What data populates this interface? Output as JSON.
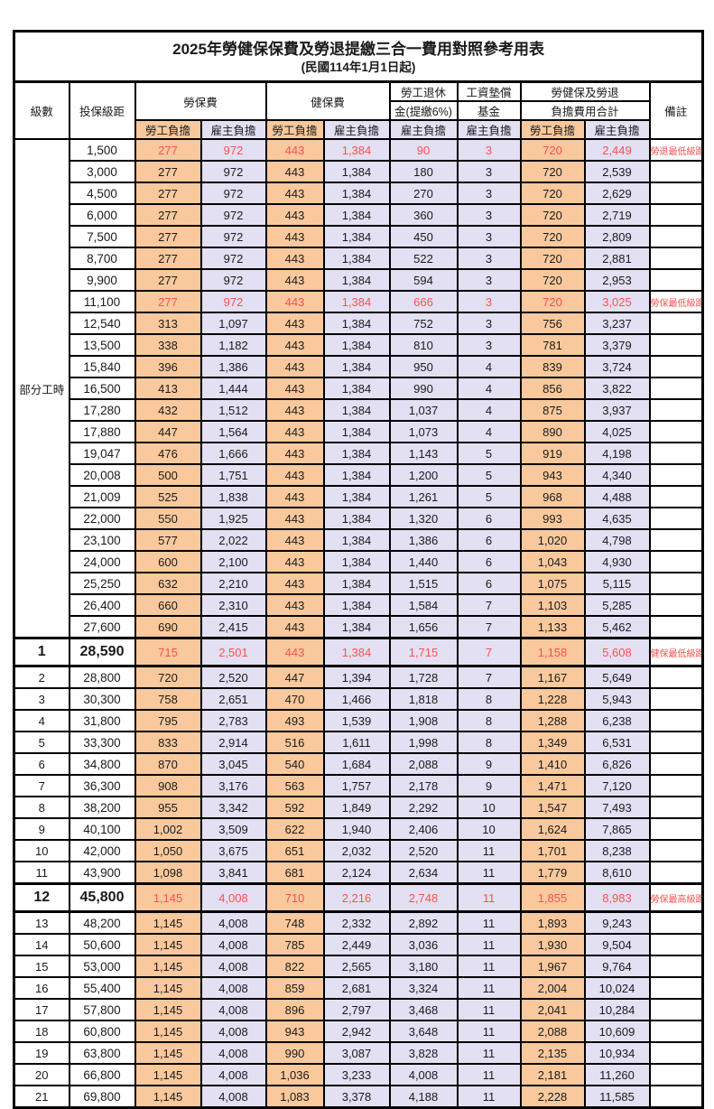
{
  "title": "2025年勞健保保費及勞退提繳三合一費用對照參考用表",
  "subtitle": "(民國114年1月1日起)",
  "header": {
    "level": "級數",
    "bracket": "投保級距",
    "labor_insurance": "勞保費",
    "health_insurance": "健保費",
    "pension_line1": "勞工退休",
    "pension_line2": "金(提繳6%)",
    "wage_fund_line1": "工資墊償",
    "wage_fund_line2": "基金",
    "total_line1": "勞健保及勞退",
    "total_line2": "負擔費用合計",
    "worker": "勞工負擔",
    "employer": "雇主負擔",
    "remarks": "備註"
  },
  "part_time_label": "部分工時",
  "part_time_rowspan": 23,
  "colors": {
    "worker_bg": "#F9C99D",
    "employer_bg": "#E2E0F2",
    "highlight_red": "#FF5050",
    "border": "#000000"
  },
  "rows": [
    {
      "level": "",
      "bracket": "1,500",
      "values": [
        "277",
        "972",
        "443",
        "1,384",
        "90",
        "3",
        "720",
        "2,449"
      ],
      "note": "勞退最低級距",
      "red": true,
      "tall": false,
      "heavy": false,
      "big": false
    },
    {
      "level": "",
      "bracket": "3,000",
      "values": [
        "277",
        "972",
        "443",
        "1,384",
        "180",
        "3",
        "720",
        "2,539"
      ],
      "note": "",
      "red": false,
      "tall": false,
      "heavy": false,
      "big": false
    },
    {
      "level": "",
      "bracket": "4,500",
      "values": [
        "277",
        "972",
        "443",
        "1,384",
        "270",
        "3",
        "720",
        "2,629"
      ],
      "note": "",
      "red": false,
      "tall": false,
      "heavy": false,
      "big": false
    },
    {
      "level": "",
      "bracket": "6,000",
      "values": [
        "277",
        "972",
        "443",
        "1,384",
        "360",
        "3",
        "720",
        "2,719"
      ],
      "note": "",
      "red": false,
      "tall": false,
      "heavy": false,
      "big": false
    },
    {
      "level": "",
      "bracket": "7,500",
      "values": [
        "277",
        "972",
        "443",
        "1,384",
        "450",
        "3",
        "720",
        "2,809"
      ],
      "note": "",
      "red": false,
      "tall": false,
      "heavy": false,
      "big": false
    },
    {
      "level": "",
      "bracket": "8,700",
      "values": [
        "277",
        "972",
        "443",
        "1,384",
        "522",
        "3",
        "720",
        "2,881"
      ],
      "note": "",
      "red": false,
      "tall": false,
      "heavy": false,
      "big": false
    },
    {
      "level": "",
      "bracket": "9,900",
      "values": [
        "277",
        "972",
        "443",
        "1,384",
        "594",
        "3",
        "720",
        "2,953"
      ],
      "note": "",
      "red": false,
      "tall": false,
      "heavy": false,
      "big": false
    },
    {
      "level": "",
      "bracket": "11,100",
      "values": [
        "277",
        "972",
        "443",
        "1,384",
        "666",
        "3",
        "720",
        "3,025"
      ],
      "note": "勞保最低級距",
      "red": true,
      "tall": false,
      "heavy": false,
      "big": false
    },
    {
      "level": "",
      "bracket": "12,540",
      "values": [
        "313",
        "1,097",
        "443",
        "1,384",
        "752",
        "3",
        "756",
        "3,237"
      ],
      "note": "",
      "red": false,
      "tall": false,
      "heavy": false,
      "big": false
    },
    {
      "level": "",
      "bracket": "13,500",
      "values": [
        "338",
        "1,182",
        "443",
        "1,384",
        "810",
        "3",
        "781",
        "3,379"
      ],
      "note": "",
      "red": false,
      "tall": false,
      "heavy": false,
      "big": false
    },
    {
      "level": "",
      "bracket": "15,840",
      "values": [
        "396",
        "1,386",
        "443",
        "1,384",
        "950",
        "4",
        "839",
        "3,724"
      ],
      "note": "",
      "red": false,
      "tall": false,
      "heavy": false,
      "big": false
    },
    {
      "level": "",
      "bracket": "16,500",
      "values": [
        "413",
        "1,444",
        "443",
        "1,384",
        "990",
        "4",
        "856",
        "3,822"
      ],
      "note": "",
      "red": false,
      "tall": false,
      "heavy": false,
      "big": false
    },
    {
      "level": "",
      "bracket": "17,280",
      "values": [
        "432",
        "1,512",
        "443",
        "1,384",
        "1,037",
        "4",
        "875",
        "3,937"
      ],
      "note": "",
      "red": false,
      "tall": false,
      "heavy": false,
      "big": false
    },
    {
      "level": "",
      "bracket": "17,880",
      "values": [
        "447",
        "1,564",
        "443",
        "1,384",
        "1,073",
        "4",
        "890",
        "4,025"
      ],
      "note": "",
      "red": false,
      "tall": false,
      "heavy": false,
      "big": false
    },
    {
      "level": "",
      "bracket": "19,047",
      "values": [
        "476",
        "1,666",
        "443",
        "1,384",
        "1,143",
        "5",
        "919",
        "4,198"
      ],
      "note": "",
      "red": false,
      "tall": false,
      "heavy": false,
      "big": false
    },
    {
      "level": "",
      "bracket": "20,008",
      "values": [
        "500",
        "1,751",
        "443",
        "1,384",
        "1,200",
        "5",
        "943",
        "4,340"
      ],
      "note": "",
      "red": false,
      "tall": false,
      "heavy": false,
      "big": false
    },
    {
      "level": "",
      "bracket": "21,009",
      "values": [
        "525",
        "1,838",
        "443",
        "1,384",
        "1,261",
        "5",
        "968",
        "4,488"
      ],
      "note": "",
      "red": false,
      "tall": false,
      "heavy": false,
      "big": false
    },
    {
      "level": "",
      "bracket": "22,000",
      "values": [
        "550",
        "1,925",
        "443",
        "1,384",
        "1,320",
        "6",
        "993",
        "4,635"
      ],
      "note": "",
      "red": false,
      "tall": false,
      "heavy": false,
      "big": false
    },
    {
      "level": "",
      "bracket": "23,100",
      "values": [
        "577",
        "2,022",
        "443",
        "1,384",
        "1,386",
        "6",
        "1,020",
        "4,798"
      ],
      "note": "",
      "red": false,
      "tall": false,
      "heavy": false,
      "big": false
    },
    {
      "level": "",
      "bracket": "24,000",
      "values": [
        "600",
        "2,100",
        "443",
        "1,384",
        "1,440",
        "6",
        "1,043",
        "4,930"
      ],
      "note": "",
      "red": false,
      "tall": false,
      "heavy": false,
      "big": false
    },
    {
      "level": "",
      "bracket": "25,250",
      "values": [
        "632",
        "2,210",
        "443",
        "1,384",
        "1,515",
        "6",
        "1,075",
        "5,115"
      ],
      "note": "",
      "red": false,
      "tall": false,
      "heavy": false,
      "big": false
    },
    {
      "level": "",
      "bracket": "26,400",
      "values": [
        "660",
        "2,310",
        "443",
        "1,384",
        "1,584",
        "7",
        "1,103",
        "5,285"
      ],
      "note": "",
      "red": false,
      "tall": false,
      "heavy": false,
      "big": false
    },
    {
      "level": "",
      "bracket": "27,600",
      "values": [
        "690",
        "2,415",
        "443",
        "1,384",
        "1,656",
        "7",
        "1,133",
        "5,462"
      ],
      "note": "",
      "red": false,
      "tall": false,
      "heavy": false,
      "big": false
    },
    {
      "level": "1",
      "bracket": "28,590",
      "values": [
        "715",
        "2,501",
        "443",
        "1,384",
        "1,715",
        "7",
        "1,158",
        "5,608"
      ],
      "note": "健保最低級距",
      "red": true,
      "tall": true,
      "heavy": true,
      "big": true
    },
    {
      "level": "2",
      "bracket": "28,800",
      "values": [
        "720",
        "2,520",
        "447",
        "1,394",
        "1,728",
        "7",
        "1,167",
        "5,649"
      ],
      "note": "",
      "red": false,
      "tall": false,
      "heavy": false,
      "big": false
    },
    {
      "level": "3",
      "bracket": "30,300",
      "values": [
        "758",
        "2,651",
        "470",
        "1,466",
        "1,818",
        "8",
        "1,228",
        "5,943"
      ],
      "note": "",
      "red": false,
      "tall": false,
      "heavy": false,
      "big": false
    },
    {
      "level": "4",
      "bracket": "31,800",
      "values": [
        "795",
        "2,783",
        "493",
        "1,539",
        "1,908",
        "8",
        "1,288",
        "6,238"
      ],
      "note": "",
      "red": false,
      "tall": false,
      "heavy": false,
      "big": false
    },
    {
      "level": "5",
      "bracket": "33,300",
      "values": [
        "833",
        "2,914",
        "516",
        "1,611",
        "1,998",
        "8",
        "1,349",
        "6,531"
      ],
      "note": "",
      "red": false,
      "tall": false,
      "heavy": false,
      "big": false
    },
    {
      "level": "6",
      "bracket": "34,800",
      "values": [
        "870",
        "3,045",
        "540",
        "1,684",
        "2,088",
        "9",
        "1,410",
        "6,826"
      ],
      "note": "",
      "red": false,
      "tall": false,
      "heavy": false,
      "big": false
    },
    {
      "level": "7",
      "bracket": "36,300",
      "values": [
        "908",
        "3,176",
        "563",
        "1,757",
        "2,178",
        "9",
        "1,471",
        "7,120"
      ],
      "note": "",
      "red": false,
      "tall": false,
      "heavy": false,
      "big": false
    },
    {
      "level": "8",
      "bracket": "38,200",
      "values": [
        "955",
        "3,342",
        "592",
        "1,849",
        "2,292",
        "10",
        "1,547",
        "7,493"
      ],
      "note": "",
      "red": false,
      "tall": false,
      "heavy": false,
      "big": false
    },
    {
      "level": "9",
      "bracket": "40,100",
      "values": [
        "1,002",
        "3,509",
        "622",
        "1,940",
        "2,406",
        "10",
        "1,624",
        "7,865"
      ],
      "note": "",
      "red": false,
      "tall": false,
      "heavy": false,
      "big": false
    },
    {
      "level": "10",
      "bracket": "42,000",
      "values": [
        "1,050",
        "3,675",
        "651",
        "2,032",
        "2,520",
        "11",
        "1,701",
        "8,238"
      ],
      "note": "",
      "red": false,
      "tall": false,
      "heavy": false,
      "big": false
    },
    {
      "level": "11",
      "bracket": "43,900",
      "values": [
        "1,098",
        "3,841",
        "681",
        "2,124",
        "2,634",
        "11",
        "1,779",
        "8,610"
      ],
      "note": "",
      "red": false,
      "tall": false,
      "heavy": false,
      "big": false
    },
    {
      "level": "12",
      "bracket": "45,800",
      "values": [
        "1,145",
        "4,008",
        "710",
        "2,216",
        "2,748",
        "11",
        "1,855",
        "8,983"
      ],
      "note": "勞保最高級距",
      "red": true,
      "tall": true,
      "heavy": true,
      "big": true
    },
    {
      "level": "13",
      "bracket": "48,200",
      "values": [
        "1,145",
        "4,008",
        "748",
        "2,332",
        "2,892",
        "11",
        "1,893",
        "9,243"
      ],
      "note": "",
      "red": false,
      "tall": false,
      "heavy": false,
      "big": false
    },
    {
      "level": "14",
      "bracket": "50,600",
      "values": [
        "1,145",
        "4,008",
        "785",
        "2,449",
        "3,036",
        "11",
        "1,930",
        "9,504"
      ],
      "note": "",
      "red": false,
      "tall": false,
      "heavy": false,
      "big": false
    },
    {
      "level": "15",
      "bracket": "53,000",
      "values": [
        "1,145",
        "4,008",
        "822",
        "2,565",
        "3,180",
        "11",
        "1,967",
        "9,764"
      ],
      "note": "",
      "red": false,
      "tall": false,
      "heavy": false,
      "big": false
    },
    {
      "level": "16",
      "bracket": "55,400",
      "values": [
        "1,145",
        "4,008",
        "859",
        "2,681",
        "3,324",
        "11",
        "2,004",
        "10,024"
      ],
      "note": "",
      "red": false,
      "tall": false,
      "heavy": false,
      "big": false
    },
    {
      "level": "17",
      "bracket": "57,800",
      "values": [
        "1,145",
        "4,008",
        "896",
        "2,797",
        "3,468",
        "11",
        "2,041",
        "10,284"
      ],
      "note": "",
      "red": false,
      "tall": false,
      "heavy": false,
      "big": false
    },
    {
      "level": "18",
      "bracket": "60,800",
      "values": [
        "1,145",
        "4,008",
        "943",
        "2,942",
        "3,648",
        "11",
        "2,088",
        "10,609"
      ],
      "note": "",
      "red": false,
      "tall": false,
      "heavy": false,
      "big": false
    },
    {
      "level": "19",
      "bracket": "63,800",
      "values": [
        "1,145",
        "4,008",
        "990",
        "3,087",
        "3,828",
        "11",
        "2,135",
        "10,934"
      ],
      "note": "",
      "red": false,
      "tall": false,
      "heavy": false,
      "big": false
    },
    {
      "level": "20",
      "bracket": "66,800",
      "values": [
        "1,145",
        "4,008",
        "1,036",
        "3,233",
        "4,008",
        "11",
        "2,181",
        "11,260"
      ],
      "note": "",
      "red": false,
      "tall": false,
      "heavy": false,
      "big": false
    },
    {
      "level": "21",
      "bracket": "69,800",
      "values": [
        "1,145",
        "4,008",
        "1,083",
        "3,378",
        "4,188",
        "11",
        "2,228",
        "11,585"
      ],
      "note": "",
      "red": false,
      "tall": false,
      "heavy": false,
      "big": false
    }
  ]
}
